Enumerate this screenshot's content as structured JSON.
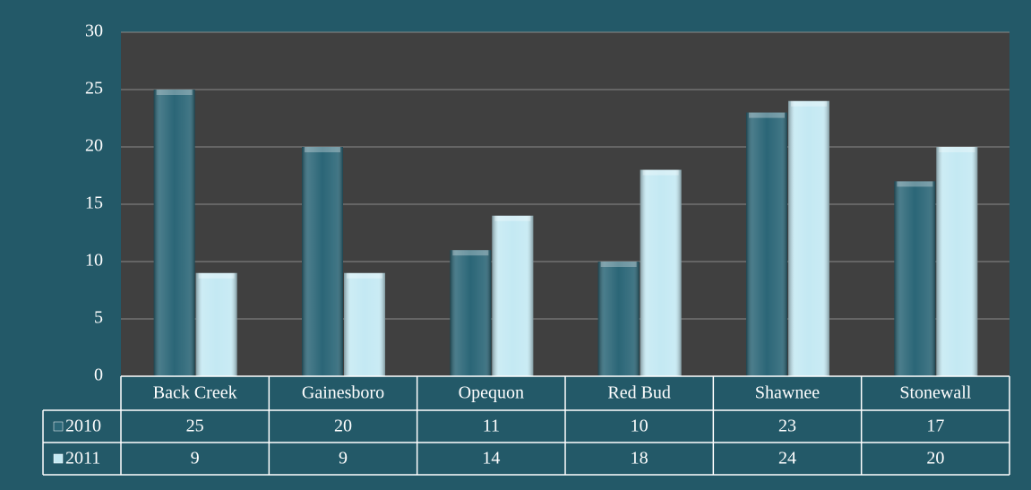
{
  "chart_data": {
    "type": "bar",
    "categories": [
      "Back Creek",
      "Gainesboro",
      "Opequon",
      "Red Bud",
      "Shawnee",
      "Stonewall"
    ],
    "series": [
      {
        "name": "2010",
        "color": "#2b6677",
        "values": [
          25,
          20,
          11,
          10,
          23,
          17
        ]
      },
      {
        "name": "2011",
        "color": "#c4e9f3",
        "values": [
          9,
          9,
          14,
          18,
          24,
          20
        ]
      }
    ],
    "ylim": [
      0,
      30
    ],
    "yticks": [
      0,
      5,
      10,
      15,
      20,
      25,
      30
    ],
    "grid": true,
    "data_table": true
  }
}
